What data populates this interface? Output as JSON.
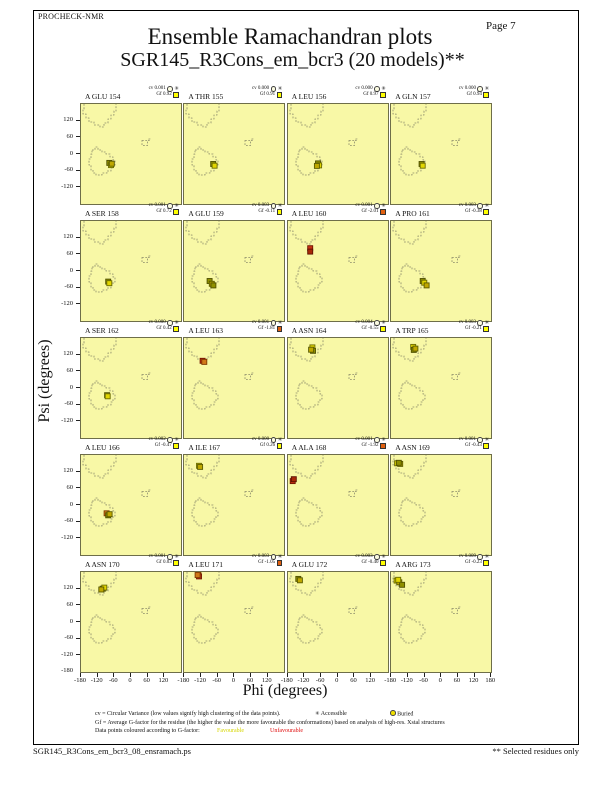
{
  "page": {
    "app_label": "PROCHECK-NMR",
    "page_number": "Page  7",
    "title": "Ensemble Ramachandran plots",
    "subtitle": "SGR145_R3Cons_em_bcr3 (20 models)**",
    "footer_left": "SGR145_R3Cons_em_bcr3_08_ensramach.ps",
    "footer_right": "** Selected residues only"
  },
  "axes": {
    "xlabel": "Phi (degrees)",
    "ylabel": "Psi (degrees)",
    "x_ticks": [
      "-180",
      "-120",
      "-60",
      "0",
      "60",
      "120"
    ],
    "x_tick_last": "180",
    "y_ticks": [
      "120",
      "60",
      "0",
      "-60",
      "-120"
    ],
    "y_tick_last": "-180",
    "xlim": [
      -180,
      180
    ],
    "ylim": [
      -180,
      180
    ]
  },
  "legend": {
    "line1": "cv = Circular Variance (low values signify high clustering of the data points).",
    "accessible_symbol": "✳",
    "accessible_label": "Accessible",
    "buried_label": "Buried",
    "line2": "Gf = Average G-factor for the residue (the higher the value the more favourable the conformations)  based on analysis of high-res. Xstal structures",
    "line3": "Data points coloured according to G-factor:",
    "favourable_label": "Favourable",
    "unfavourable_label": "Unfavourable",
    "cv_prefix": "cv",
    "gf_prefix": "Gf"
  },
  "colors": {
    "plot_background": "#f8f8a6",
    "plot_border": "#6e6e49",
    "contour": "#8a8a6a",
    "favourable_square": "#ffff00",
    "unfavourable_square": "#e06010",
    "point_yellow": "#e2d600",
    "point_gold": "#bfa800",
    "point_olive": "#8f8f00",
    "point_orange": "#d07818",
    "point_red": "#c83214",
    "point_red2": "#a82808"
  },
  "chart_data": {
    "type": "scatter",
    "title": "Ensemble Ramachandran plots",
    "grid_rows": 5,
    "grid_cols": 4,
    "xlabel": "Phi (degrees)",
    "ylabel": "Psi (degrees)",
    "xlim": [
      -180,
      180
    ],
    "ylim": [
      -180,
      180
    ],
    "plots": [
      {
        "residue": "A GLU 154",
        "cv": "0.001",
        "gf": "0.92",
        "gf_state": "favourable",
        "points": [
          {
            "phi": -78,
            "psi": -32,
            "c": "olive"
          },
          {
            "phi": -72,
            "psi": -40,
            "c": "yellow"
          },
          {
            "phi": -69,
            "psi": -35,
            "c": "gold"
          }
        ]
      },
      {
        "residue": "A THR 155",
        "cv": "0.000",
        "gf": "0.91",
        "gf_state": "favourable",
        "points": [
          {
            "phi": -75,
            "psi": -36,
            "c": "olive"
          },
          {
            "phi": -70,
            "psi": -42,
            "c": "yellow"
          }
        ]
      },
      {
        "residue": "A LEU 156",
        "cv": "0.000",
        "gf": "0.97",
        "gf_state": "favourable",
        "points": [
          {
            "phi": -72,
            "psi": -34,
            "c": "olive"
          },
          {
            "phi": -68,
            "psi": -41,
            "c": "yellow"
          },
          {
            "phi": -76,
            "psi": -43,
            "c": "gold"
          }
        ]
      },
      {
        "residue": "A GLN 157",
        "cv": "0.000",
        "gf": "0.94",
        "gf_state": "favourable",
        "points": [
          {
            "phi": -70,
            "psi": -36,
            "c": "olive"
          },
          {
            "phi": -66,
            "psi": -42,
            "c": "yellow"
          }
        ]
      },
      {
        "residue": "A SER 158",
        "cv": "0.001",
        "gf": "0.72",
        "gf_state": "favourable",
        "points": [
          {
            "phi": -82,
            "psi": -38,
            "c": "olive"
          },
          {
            "phi": -78,
            "psi": -44,
            "c": "yellow"
          }
        ]
      },
      {
        "residue": "A GLU 159",
        "cv": "0.003",
        "gf": "-0.11",
        "gf_state": "favourable",
        "points": [
          {
            "phi": -88,
            "psi": -36,
            "c": "olive"
          },
          {
            "phi": -80,
            "psi": -46,
            "c": "gold"
          },
          {
            "phi": -74,
            "psi": -52,
            "c": "olive"
          }
        ]
      },
      {
        "residue": "A LEU 160",
        "cv": "0.001",
        "gf": "-2.01",
        "gf_state": "unfavourable",
        "points": [
          {
            "phi": -100,
            "psi": 82,
            "c": "red"
          },
          {
            "phi": -100,
            "psi": 70,
            "c": "red2"
          }
        ]
      },
      {
        "residue": "A PRO 161",
        "cv": "0.003",
        "gf": "-0.38",
        "gf_state": "favourable",
        "points": [
          {
            "phi": -66,
            "psi": -36,
            "c": "olive"
          },
          {
            "phi": -60,
            "psi": -42,
            "c": "yellow"
          },
          {
            "phi": -52,
            "psi": -52,
            "c": "gold"
          }
        ]
      },
      {
        "residue": "A SER 162",
        "cv": "0.000",
        "gf": "0.42",
        "gf_state": "favourable",
        "points": [
          {
            "phi": -86,
            "psi": -26,
            "c": "olive"
          },
          {
            "phi": -84,
            "psi": -30,
            "c": "yellow"
          }
        ]
      },
      {
        "residue": "A LEU 163",
        "cv": "0.001",
        "gf": "-1.81",
        "gf_state": "unfavourable",
        "points": [
          {
            "phi": -113,
            "psi": 98,
            "c": "red"
          },
          {
            "phi": -107,
            "psi": 94,
            "c": "orange"
          }
        ]
      },
      {
        "residue": "A ASN 164",
        "cv": "0.004",
        "gf": "-0.55",
        "gf_state": "favourable",
        "points": [
          {
            "phi": -92,
            "psi": 146,
            "c": "yellow"
          },
          {
            "phi": -90,
            "psi": 134,
            "c": "olive"
          },
          {
            "phi": -97,
            "psi": 138,
            "c": "gold"
          }
        ]
      },
      {
        "residue": "A TRP 165",
        "cv": "0.003",
        "gf": "-0.21",
        "gf_state": "favourable",
        "points": [
          {
            "phi": -100,
            "psi": 148,
            "c": "yellow"
          },
          {
            "phi": -98,
            "psi": 137,
            "c": "olive"
          },
          {
            "phi": -92,
            "psi": 142,
            "c": "gold"
          }
        ]
      },
      {
        "residue": "A LEU 166",
        "cv": "0.002",
        "gf": "-0.47",
        "gf_state": "favourable",
        "points": [
          {
            "phi": -88,
            "psi": -30,
            "c": "orange"
          },
          {
            "phi": -82,
            "psi": -37,
            "c": "olive"
          },
          {
            "phi": -77,
            "psi": -33,
            "c": "gold"
          }
        ]
      },
      {
        "residue": "A ILE 167",
        "cv": "0.000",
        "gf": "0.26",
        "gf_state": "favourable",
        "points": [
          {
            "phi": -126,
            "psi": 141,
            "c": "yellow"
          },
          {
            "phi": -122,
            "psi": 137,
            "c": "gold"
          }
        ]
      },
      {
        "residue": "A ALA 168",
        "cv": "0.001",
        "gf": "-1.92",
        "gf_state": "unfavourable",
        "points": [
          {
            "phi": -163,
            "psi": 86,
            "c": "red"
          },
          {
            "phi": -159,
            "psi": 93,
            "c": "red2"
          }
        ]
      },
      {
        "residue": "A ASN 169",
        "cv": "0.001",
        "gf": "-0.43",
        "gf_state": "favourable",
        "points": [
          {
            "phi": -158,
            "psi": 150,
            "c": "yellow"
          },
          {
            "phi": -147,
            "psi": 148,
            "c": "gold"
          },
          {
            "phi": -152,
            "psi": 152,
            "c": "olive"
          }
        ]
      },
      {
        "residue": "A ASN 170",
        "cv": "0.001",
        "gf": "0.03",
        "gf_state": "favourable",
        "points": [
          {
            "phi": -102,
            "psi": 120,
            "c": "olive"
          },
          {
            "phi": -96,
            "psi": 124,
            "c": "yellow"
          },
          {
            "phi": -107,
            "psi": 117,
            "c": "gold"
          }
        ]
      },
      {
        "residue": "A LEU 171",
        "cv": "0.003",
        "gf": "-1.05",
        "gf_state": "unfavourable",
        "points": [
          {
            "phi": -128,
            "psi": 173,
            "c": "orange"
          },
          {
            "phi": -126,
            "psi": 164,
            "c": "red"
          },
          {
            "phi": -131,
            "psi": 169,
            "c": "orange"
          }
        ]
      },
      {
        "residue": "A GLU 172",
        "cv": "0.003",
        "gf": "-0.40",
        "gf_state": "favourable",
        "points": [
          {
            "phi": -143,
            "psi": 155,
            "c": "olive"
          },
          {
            "phi": -137,
            "psi": 150,
            "c": "gold"
          }
        ]
      },
      {
        "residue": "A ARG 173",
        "cv": "0.009",
        "gf": "-0.23",
        "gf_state": "favourable",
        "points": [
          {
            "phi": -160,
            "psi": 149,
            "c": "yellow"
          },
          {
            "phi": -150,
            "psi": 143,
            "c": "gold"
          },
          {
            "phi": -140,
            "psi": 134,
            "c": "olive"
          },
          {
            "phi": -154,
            "psi": 152,
            "c": "yellow"
          }
        ]
      }
    ]
  }
}
